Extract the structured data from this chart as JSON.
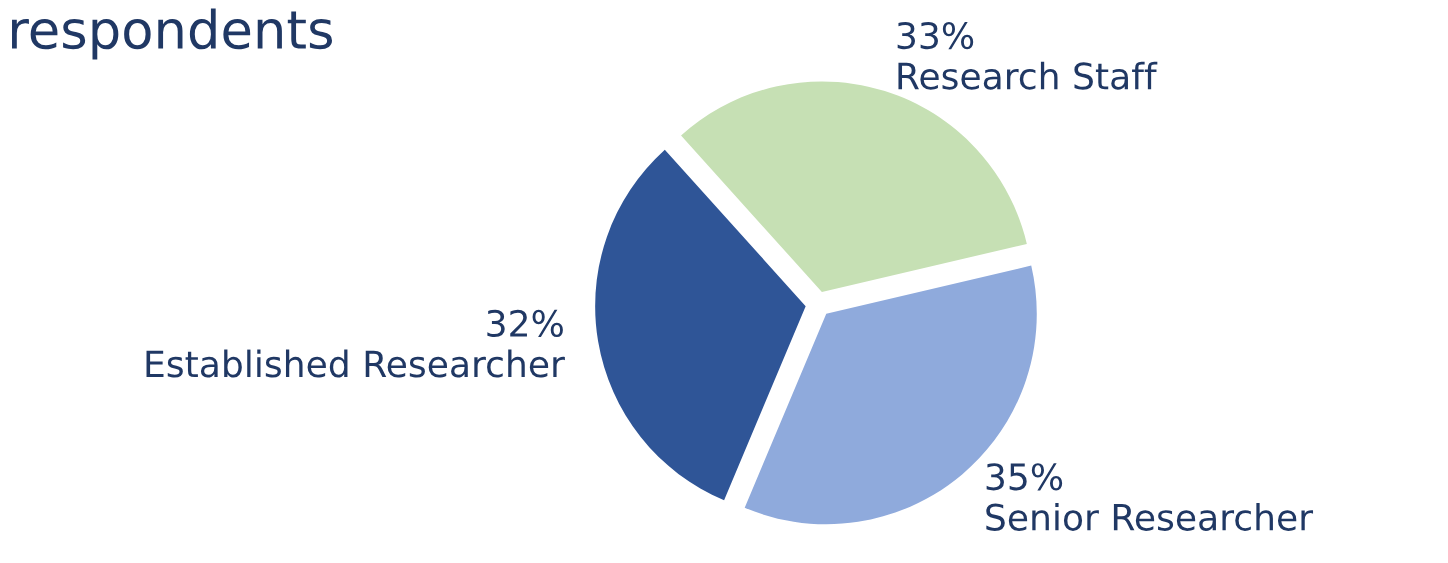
{
  "chart_data": {
    "type": "pie",
    "title": "respondents",
    "categories": [
      "Research Staff",
      "Senior Researcher",
      "Established Researcher"
    ],
    "values": [
      33,
      35,
      32
    ],
    "value_labels": [
      "33%",
      "35%",
      "32%"
    ],
    "colors": [
      "#c6e0b4",
      "#8faadc",
      "#2f5597"
    ]
  }
}
